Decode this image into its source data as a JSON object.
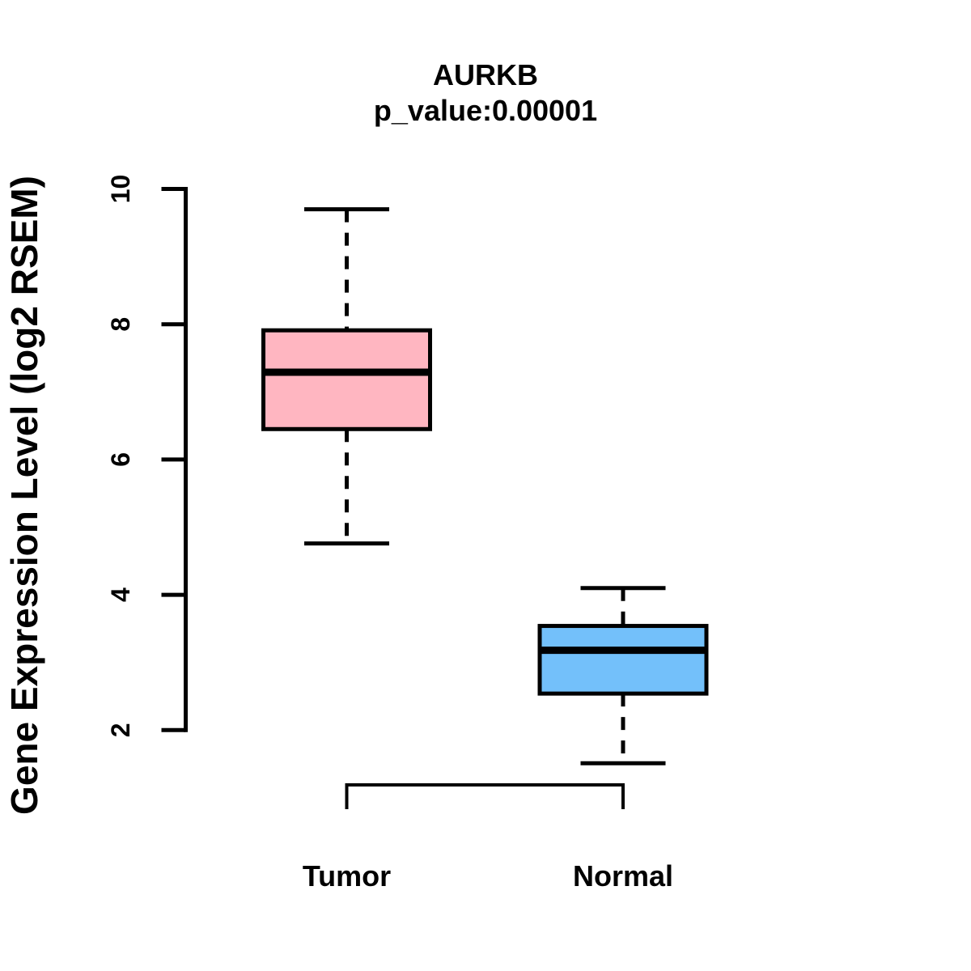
{
  "chart_data": {
    "type": "boxplot",
    "title": "AURKB",
    "subtitle": "p_value:0.00001",
    "ylabel": "Gene Expression Level (log2 RSEM)",
    "xlabel": "",
    "categories": [
      "Tumor",
      "Normal"
    ],
    "y_axis": {
      "ticks": [
        2,
        4,
        6,
        8,
        10
      ],
      "drawn_range": [
        2,
        10
      ]
    },
    "legend": "none",
    "grid": false,
    "background_color": "#FFFFFF",
    "groups": [
      {
        "name": "Tumor",
        "color": "#FFB6C1",
        "whisker_low": 4.76,
        "q1": 6.45,
        "median": 7.29,
        "q3": 7.91,
        "whisker_high": 9.7,
        "outliers": []
      },
      {
        "name": "Normal",
        "color": "#73C0FA",
        "whisker_low": 1.51,
        "q1": 2.54,
        "median": 3.18,
        "q3": 3.54,
        "whisker_high": 4.1,
        "outliers": []
      }
    ],
    "style": {
      "border_color": "#000000",
      "median_color": "#000000",
      "whisker_line_style": "dashed",
      "axis_color": "#000000"
    }
  }
}
